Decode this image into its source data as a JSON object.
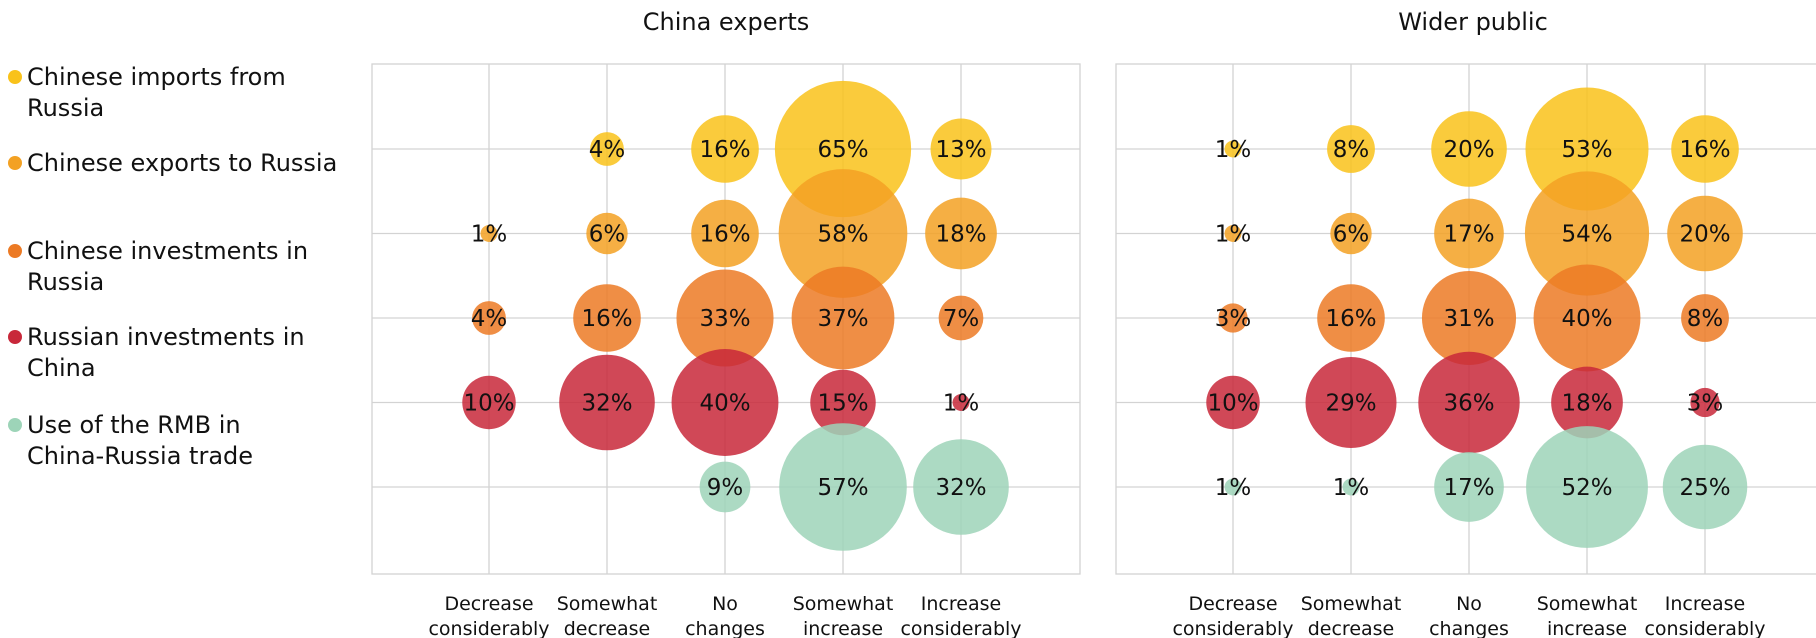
{
  "chart_data": {
    "type": "bubble",
    "categories": [
      "Decrease considerably",
      "Somewhat decrease",
      "No changes",
      "Somewhat increase",
      "Increase considerably"
    ],
    "category_lines": [
      [
        "Decrease",
        "considerably"
      ],
      [
        "Somewhat",
        "decrease"
      ],
      [
        "No",
        "changes"
      ],
      [
        "Somewhat",
        "increase"
      ],
      [
        "Increase",
        "considerably"
      ]
    ],
    "series": [
      {
        "name": "Chinese imports from Russia",
        "name_lines": [
          "Chinese imports from",
          "Russia"
        ],
        "color": "#F9C21A"
      },
      {
        "name": "Chinese exports to Russia",
        "name_lines": [
          "Chinese exports to Russia"
        ],
        "color": "#F3A123"
      },
      {
        "name": "Chinese investments in Russia",
        "name_lines": [
          "Chinese investments in",
          "Russia"
        ],
        "color": "#EC7A24"
      },
      {
        "name": "Russian investments in China",
        "name_lines": [
          "Russian investments in",
          "China"
        ],
        "color": "#C8283A"
      },
      {
        "name": "Use of the RMB in China-Russia trade",
        "name_lines": [
          "Use of the RMB in",
          "China-Russia trade"
        ],
        "color": "#9DD4B8"
      }
    ],
    "panels": [
      {
        "title": "China experts",
        "values": [
          [
            null,
            4,
            16,
            65,
            13
          ],
          [
            1,
            6,
            16,
            58,
            18
          ],
          [
            4,
            16,
            33,
            37,
            7
          ],
          [
            10,
            32,
            40,
            15,
            1
          ],
          [
            null,
            null,
            9,
            57,
            32
          ]
        ]
      },
      {
        "title": "Wider public",
        "values": [
          [
            1,
            8,
            20,
            53,
            16
          ],
          [
            1,
            6,
            17,
            54,
            20
          ],
          [
            3,
            16,
            31,
            40,
            8
          ],
          [
            10,
            29,
            36,
            18,
            3
          ],
          [
            1,
            1,
            17,
            52,
            25
          ]
        ]
      }
    ],
    "value_suffix": "%",
    "grid": true,
    "legend_position": "left"
  }
}
